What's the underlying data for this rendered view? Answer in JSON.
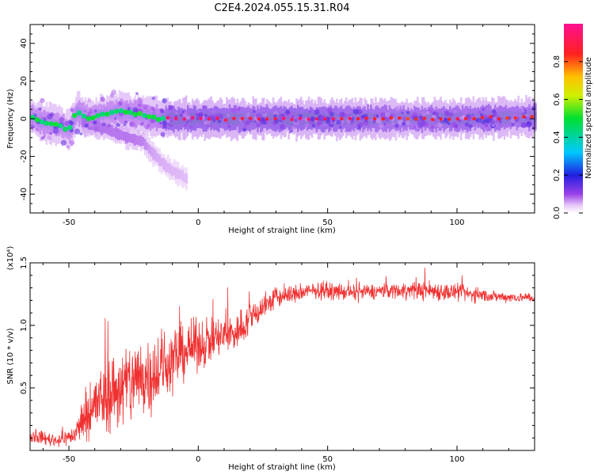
{
  "figure": {
    "title": "C2E4.2024.055.15.31.R04"
  },
  "chart_data": [
    {
      "type": "heatmap",
      "xlabel": "Height of straight line (km)",
      "ylabel": "Frequency (Hz)",
      "xlim": [
        -65,
        130
      ],
      "ylim": [
        -50,
        50
      ],
      "xticks": [
        -50,
        0,
        50,
        100
      ],
      "xtick_labels": [
        "-50",
        "0",
        "50",
        "100"
      ],
      "yticks": [
        -40,
        -20,
        0,
        20,
        40
      ],
      "ytick_labels": [
        "-40",
        "-20",
        "0",
        "20",
        "40"
      ],
      "colorbar": {
        "label": "Normalized spectral amplitude",
        "range": [
          0,
          1
        ],
        "ticks": [
          0.0,
          0.2,
          0.4,
          0.6,
          0.8
        ],
        "tick_labels": [
          "0.0",
          "0.2",
          "0.4",
          "0.6",
          "0.8"
        ],
        "colormap": "rainbow (purple-blue-cyan-green-yellow-orange-red-magenta)"
      },
      "ridge": [
        {
          "x": -65,
          "f": 1,
          "amp": 0.45
        },
        {
          "x": -60,
          "f": -2,
          "amp": 0.5
        },
        {
          "x": -55,
          "f": -3,
          "amp": 0.45
        },
        {
          "x": -50,
          "f": -6,
          "amp": 0.4
        },
        {
          "x": -47,
          "f": 4,
          "amp": 0.5
        },
        {
          "x": -43,
          "f": 0,
          "amp": 0.45
        },
        {
          "x": -38,
          "f": 2,
          "amp": 0.45
        },
        {
          "x": -30,
          "f": 4,
          "amp": 0.5
        },
        {
          "x": -22,
          "f": 2,
          "amp": 0.45
        },
        {
          "x": -15,
          "f": 0,
          "amp": 0.6
        },
        {
          "x": -12,
          "f": 0,
          "amp": 0.9
        },
        {
          "x": 0,
          "f": 0,
          "amp": 0.95
        },
        {
          "x": 20,
          "f": 0,
          "amp": 0.85
        },
        {
          "x": 40,
          "f": 0,
          "amp": 0.95
        },
        {
          "x": 60,
          "f": 0,
          "amp": 0.85
        },
        {
          "x": 80,
          "f": 0,
          "amp": 0.8
        },
        {
          "x": 100,
          "f": 0,
          "amp": 0.85
        },
        {
          "x": 130,
          "f": 1,
          "amp": 0.8
        }
      ],
      "branch": [
        {
          "x": -45,
          "f": -2,
          "amp": 0.4
        },
        {
          "x": -35,
          "f": -6,
          "amp": 0.35
        },
        {
          "x": -28,
          "f": -10,
          "amp": 0.35
        },
        {
          "x": -22,
          "f": -12,
          "amp": 0.3
        },
        {
          "x": -18,
          "f": -18,
          "amp": 0.15
        },
        {
          "x": -13,
          "f": -25,
          "amp": 0.1
        },
        {
          "x": -5,
          "f": -32,
          "amp": 0.05
        }
      ]
    },
    {
      "type": "line",
      "xlabel": "Height of straight line (km)",
      "ylabel": "SNR (10 * v/v)",
      "multiplier": "(x10⁴)",
      "xlim": [
        -65,
        130
      ],
      "ylim": [
        0,
        1.5
      ],
      "xticks": [
        -50,
        0,
        50,
        100
      ],
      "xtick_labels": [
        "-50",
        "0",
        "50",
        "100"
      ],
      "yticks": [
        0.5,
        1.0,
        1.5
      ],
      "ytick_labels": [
        "0.5",
        "1.0",
        "1.5"
      ],
      "color": "#f03030",
      "envelope": [
        {
          "x": -65,
          "mean": 0.12,
          "spread": 0.06
        },
        {
          "x": -55,
          "mean": 0.08,
          "spread": 0.06
        },
        {
          "x": -48,
          "mean": 0.12,
          "spread": 0.08
        },
        {
          "x": -43,
          "mean": 0.3,
          "spread": 0.25
        },
        {
          "x": -35,
          "mean": 0.45,
          "spread": 0.35
        },
        {
          "x": -25,
          "mean": 0.55,
          "spread": 0.4
        },
        {
          "x": -15,
          "mean": 0.65,
          "spread": 0.35
        },
        {
          "x": -5,
          "mean": 0.8,
          "spread": 0.25
        },
        {
          "x": 5,
          "mean": 0.88,
          "spread": 0.2
        },
        {
          "x": 15,
          "mean": 0.95,
          "spread": 0.18
        },
        {
          "x": 22,
          "mean": 1.1,
          "spread": 0.14
        },
        {
          "x": 30,
          "mean": 1.22,
          "spread": 0.1
        },
        {
          "x": 45,
          "mean": 1.28,
          "spread": 0.07
        },
        {
          "x": 60,
          "mean": 1.26,
          "spread": 0.07
        },
        {
          "x": 75,
          "mean": 1.28,
          "spread": 0.07
        },
        {
          "x": 90,
          "mean": 1.28,
          "spread": 0.09
        },
        {
          "x": 100,
          "mean": 1.26,
          "spread": 0.08
        },
        {
          "x": 115,
          "mean": 1.23,
          "spread": 0.05
        },
        {
          "x": 130,
          "mean": 1.22,
          "spread": 0.04
        }
      ]
    }
  ]
}
